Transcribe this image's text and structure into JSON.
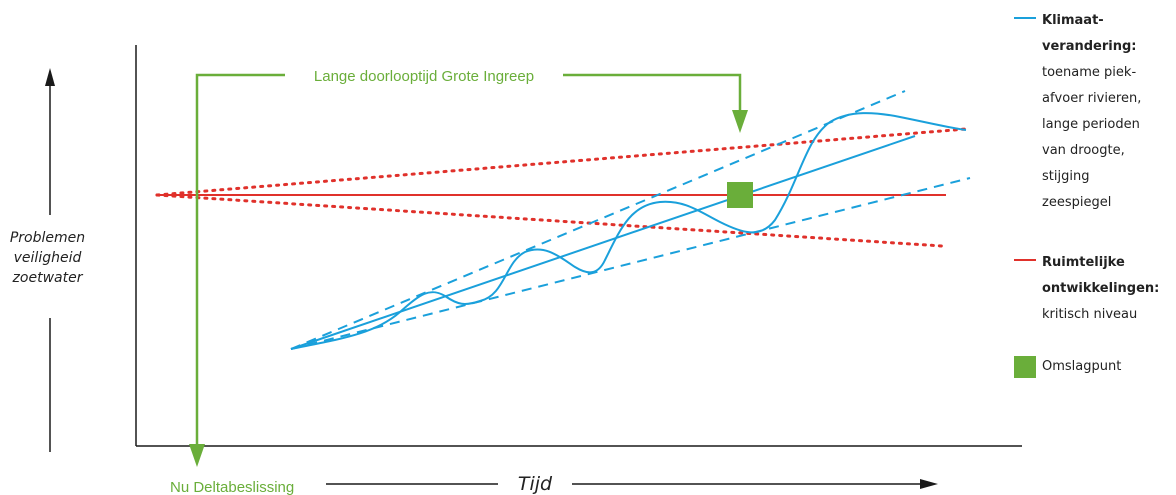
{
  "colors": {
    "blue": "#1aa0db",
    "red": "#e0312b",
    "green": "#6aae3a",
    "axis": "#1a1a1a"
  },
  "labels": {
    "lange_doorlooptijd": "Lange doorlooptijd Grote Ingreep",
    "nu_deltabeslissing": "Nu Deltabeslissing",
    "tijd": "Tijd",
    "problemen": [
      "Problemen",
      "veiligheid",
      "zoetwater"
    ]
  },
  "legend": {
    "klimaat": {
      "title": [
        "Klimaat-",
        "verandering:"
      ],
      "lines": [
        "toename piek-",
        "afvoer rivieren,",
        "lange perioden",
        "van droogte,",
        "stijging",
        "zeespiegel"
      ]
    },
    "ruimtelijk": {
      "title": [
        "Ruimtelijke",
        "ontwikkelingen:"
      ],
      "lines": [
        "kritisch niveau"
      ]
    },
    "omslagpunt": "Omslagpunt"
  }
}
